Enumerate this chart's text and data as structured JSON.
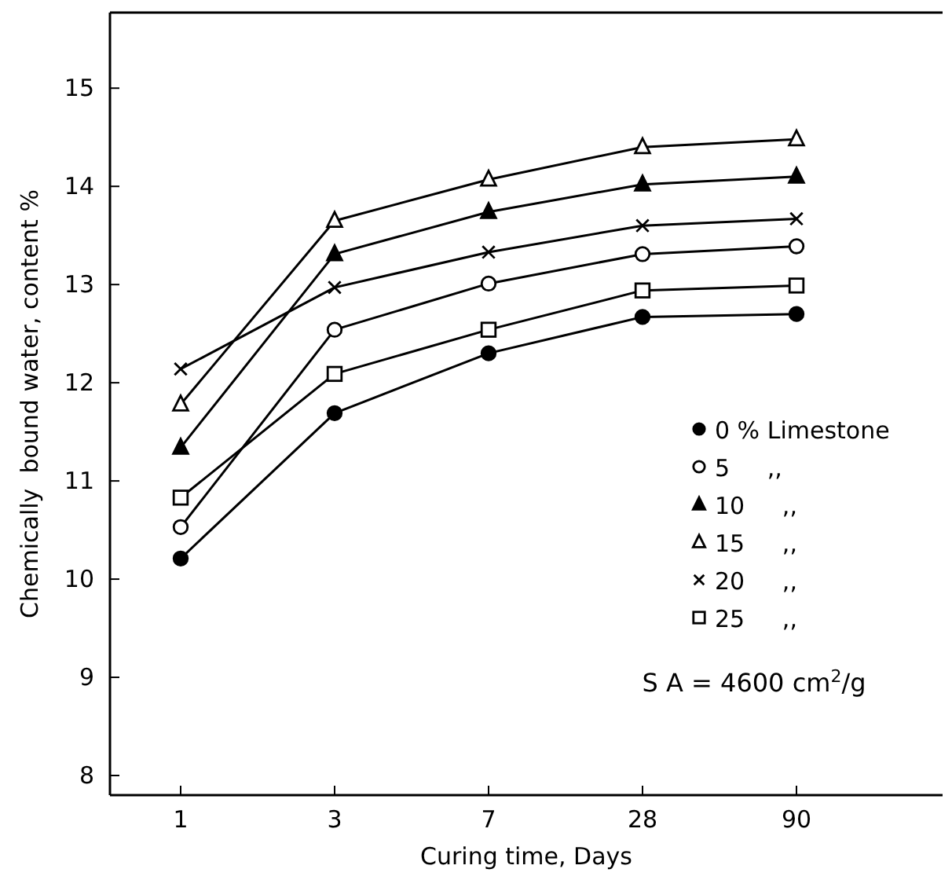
{
  "chart_data": {
    "type": "line",
    "xlabel": "Curing time, Days",
    "ylabel": "Chemically  bound water, content %",
    "categories": [
      "1",
      "3",
      "7",
      "28",
      "90"
    ],
    "ylim": [
      7.8,
      15.77
    ],
    "yticks": [
      8,
      9,
      10,
      11,
      12,
      13,
      14,
      15
    ],
    "grid": false,
    "legend": "right",
    "annotations": [
      "S A = 4600 cm$^{2}$/g"
    ],
    "series": [
      {
        "name": "0 % Limestone",
        "color": "#000000",
        "marker": "circle",
        "values": [
          10.21,
          11.69,
          12.3,
          12.67,
          12.7
        ]
      },
      {
        "name": "5     ,,",
        "color": "#000000",
        "marker": "circle-open",
        "values": [
          10.53,
          12.54,
          13.01,
          13.31,
          13.39
        ]
      },
      {
        "name": "10     ,,",
        "color": "#000000",
        "marker": "triangle",
        "values": [
          11.34,
          13.31,
          13.74,
          14.02,
          14.1
        ]
      },
      {
        "name": "15     ,,",
        "color": "#000000",
        "marker": "triangle-open",
        "values": [
          11.78,
          13.65,
          14.07,
          14.4,
          14.48
        ]
      },
      {
        "name": "20     ,,",
        "color": "#000000",
        "marker": "cross",
        "values": [
          12.14,
          12.97,
          13.33,
          13.6,
          13.67
        ]
      },
      {
        "name": "25     ,,",
        "color": "#000000",
        "marker": "square-open",
        "values": [
          10.83,
          12.09,
          12.54,
          12.94,
          12.99
        ]
      }
    ]
  }
}
